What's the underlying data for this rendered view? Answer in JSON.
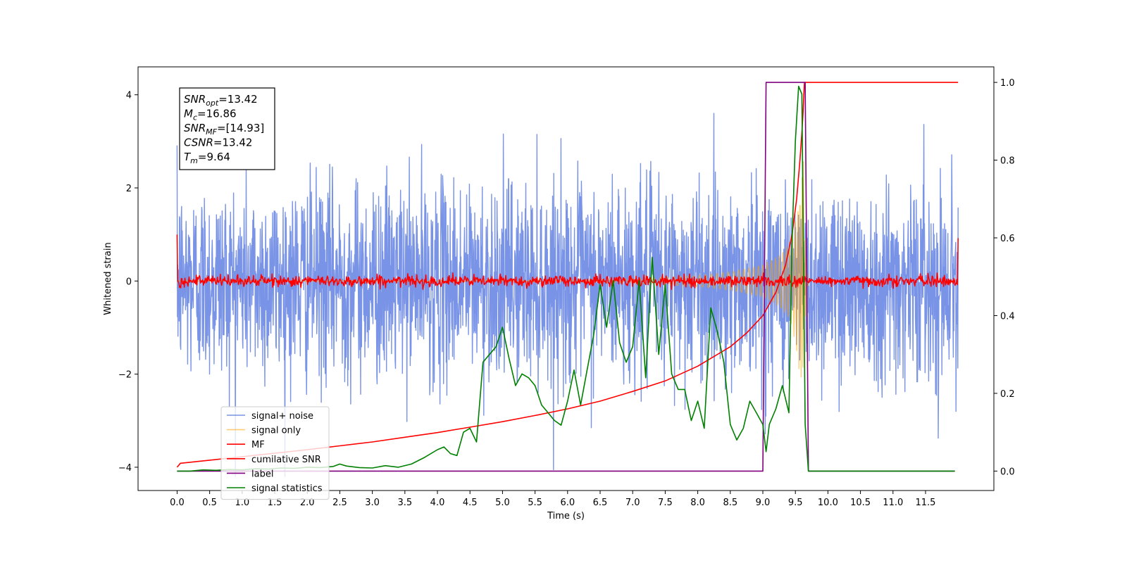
{
  "chart_data": {
    "type": "line",
    "title": "",
    "xlabel": "Time (s)",
    "ylabel": "Whitened strain",
    "xlim": [
      -0.6,
      12.55
    ],
    "ylim": [
      -4.5,
      4.6
    ],
    "y2lim": [
      -0.05,
      1.04
    ],
    "xticks": [
      0.0,
      0.5,
      1.0,
      1.5,
      2.0,
      2.5,
      3.0,
      3.5,
      4.0,
      4.5,
      5.0,
      5.5,
      6.0,
      6.5,
      7.0,
      7.5,
      8.0,
      8.5,
      9.0,
      9.5,
      10.0,
      10.5,
      11.0,
      11.5
    ],
    "xtick_labels": [
      "0.0",
      "0.5",
      "1.0",
      "1.5",
      "2.0",
      "2.5",
      "3.0",
      "3.5",
      "4.0",
      "4.5",
      "5.0",
      "5.5",
      "6.0",
      "6.5",
      "7.0",
      "7.5",
      "8.0",
      "8.5",
      "9.0",
      "9.5",
      "10.0",
      "10.5",
      "11.0",
      "11.5"
    ],
    "yticks": [
      -4,
      -2,
      0,
      2,
      4
    ],
    "ytick_labels": [
      "−4",
      "−2",
      "0",
      "2",
      "4"
    ],
    "y2ticks": [
      0.0,
      0.2,
      0.4,
      0.6,
      0.8,
      1.0
    ],
    "y2tick_labels": [
      "0.0",
      "0.2",
      "0.4",
      "0.6",
      "0.8",
      "1.0"
    ],
    "grid": false,
    "legend_position": "lower-left",
    "annotation": {
      "lines": [
        {
          "base": "SNR",
          "sub": "opt",
          "rest": "=13.42"
        },
        {
          "base": "M",
          "sub": "c",
          "rest": "=16.86"
        },
        {
          "base": "SNR",
          "sub": "MF",
          "rest": "=[14.93]"
        },
        {
          "base": "CSNR",
          "sub": "",
          "rest": "=13.42"
        },
        {
          "base": "T",
          "sub": "m",
          "rest": "=9.64"
        }
      ]
    },
    "series": [
      {
        "name": "signal+ noise",
        "color": "#5b7be0",
        "axis": "left",
        "kind": "noise",
        "x_range": [
          0.0,
          12.0
        ],
        "amplitude_std": 1.05,
        "peak_max": 4.2
      },
      {
        "name": "signal only",
        "color": "#ffa500",
        "axis": "left",
        "kind": "chirp",
        "x": [
          0.0,
          6.0,
          7.0,
          8.0,
          8.5,
          9.0,
          9.2,
          9.4,
          9.5,
          9.6,
          9.64,
          9.66,
          9.7
        ],
        "envelope": [
          0.0,
          0.02,
          0.05,
          0.12,
          0.2,
          0.35,
          0.5,
          0.8,
          1.3,
          2.4,
          3.0,
          0.6,
          0.0
        ]
      },
      {
        "name": "MF",
        "color": "#ff0000",
        "axis": "left",
        "kind": "mf",
        "x_range": [
          0.0,
          12.0
        ],
        "start_value": 1.0,
        "end_value": 0.92,
        "noise_std": 0.06
      },
      {
        "name": "cumilative SNR",
        "color": "#ff0000",
        "axis": "right",
        "x": [
          0.0,
          0.05,
          0.5,
          1.0,
          1.5,
          2.0,
          2.5,
          3.0,
          3.5,
          4.0,
          4.5,
          5.0,
          5.5,
          6.0,
          6.5,
          7.0,
          7.5,
          8.0,
          8.5,
          8.75,
          9.0,
          9.2,
          9.35,
          9.45,
          9.52,
          9.57,
          9.6,
          9.62,
          9.63,
          9.64,
          12.0
        ],
        "y": [
          0.01,
          0.02,
          0.028,
          0.037,
          0.046,
          0.055,
          0.065,
          0.075,
          0.087,
          0.099,
          0.113,
          0.127,
          0.143,
          0.16,
          0.18,
          0.205,
          0.232,
          0.27,
          0.32,
          0.355,
          0.4,
          0.46,
          0.53,
          0.61,
          0.7,
          0.8,
          0.87,
          0.93,
          0.97,
          1.0,
          1.0
        ]
      },
      {
        "name": "label",
        "color": "#800080",
        "axis": "right",
        "x": [
          0.0,
          9.0,
          9.05,
          9.65,
          9.7,
          11.95
        ],
        "y": [
          0.0,
          0.0,
          1.0,
          1.0,
          0.0,
          0.0
        ]
      },
      {
        "name": "signal statistics",
        "color": "#008000",
        "axis": "right",
        "x": [
          0.0,
          0.2,
          0.4,
          0.6,
          0.8,
          1.0,
          1.2,
          1.4,
          1.6,
          1.8,
          2.0,
          2.2,
          2.4,
          2.5,
          2.6,
          2.8,
          3.0,
          3.2,
          3.4,
          3.6,
          3.8,
          4.0,
          4.1,
          4.2,
          4.3,
          4.4,
          4.5,
          4.6,
          4.7,
          4.8,
          4.9,
          5.0,
          5.1,
          5.2,
          5.3,
          5.4,
          5.5,
          5.6,
          5.7,
          5.8,
          5.9,
          6.0,
          6.1,
          6.2,
          6.3,
          6.4,
          6.5,
          6.6,
          6.7,
          6.8,
          6.9,
          7.0,
          7.1,
          7.2,
          7.3,
          7.4,
          7.5,
          7.6,
          7.7,
          7.8,
          7.9,
          8.0,
          8.1,
          8.2,
          8.3,
          8.4,
          8.5,
          8.6,
          8.7,
          8.8,
          8.9,
          9.0,
          9.05,
          9.1,
          9.2,
          9.3,
          9.4,
          9.45,
          9.5,
          9.55,
          9.6,
          9.65,
          9.7,
          9.75,
          11.95
        ],
        "y": [
          0.0,
          0.0,
          0.003,
          0.002,
          0.004,
          0.003,
          0.006,
          0.005,
          0.008,
          0.007,
          0.01,
          0.009,
          0.012,
          0.018,
          0.013,
          0.009,
          0.008,
          0.014,
          0.01,
          0.018,
          0.035,
          0.055,
          0.062,
          0.045,
          0.04,
          0.1,
          0.11,
          0.075,
          0.28,
          0.3,
          0.32,
          0.37,
          0.29,
          0.22,
          0.25,
          0.24,
          0.22,
          0.17,
          0.15,
          0.13,
          0.118,
          0.18,
          0.26,
          0.17,
          0.26,
          0.35,
          0.48,
          0.37,
          0.49,
          0.33,
          0.28,
          0.32,
          0.49,
          0.24,
          0.55,
          0.3,
          0.48,
          0.25,
          0.21,
          0.21,
          0.13,
          0.18,
          0.11,
          0.42,
          0.36,
          0.28,
          0.12,
          0.08,
          0.11,
          0.18,
          0.15,
          0.12,
          0.05,
          0.12,
          0.16,
          0.22,
          0.15,
          0.6,
          0.85,
          0.99,
          0.97,
          0.12,
          0.0,
          0.0,
          0.0
        ]
      }
    ]
  }
}
